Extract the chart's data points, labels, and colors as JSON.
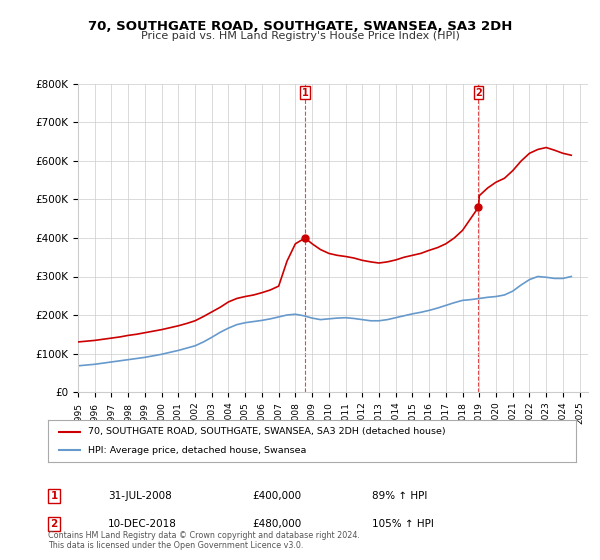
{
  "title": "70, SOUTHGATE ROAD, SOUTHGATE, SWANSEA, SA3 2DH",
  "subtitle": "Price paid vs. HM Land Registry's House Price Index (HPI)",
  "legend_line1": "70, SOUTHGATE ROAD, SOUTHGATE, SWANSEA, SA3 2DH (detached house)",
  "legend_line2": "HPI: Average price, detached house, Swansea",
  "copyright": "Contains HM Land Registry data © Crown copyright and database right 2024.\nThis data is licensed under the Open Government Licence v3.0.",
  "sale1_date": "31-JUL-2008",
  "sale1_price": "£400,000",
  "sale1_hpi": "89% ↑ HPI",
  "sale2_date": "10-DEC-2018",
  "sale2_price": "£480,000",
  "sale2_hpi": "105% ↑ HPI",
  "red_color": "#cc0000",
  "blue_color": "#6699cc",
  "background_color": "#ffffff",
  "ylim": [
    0,
    800000
  ],
  "xlim_start": 1995.0,
  "xlim_end": 2025.5,
  "sale1_x": 2008.58,
  "sale2_x": 2018.95,
  "sale1_y": 400000,
  "sale2_y": 480000,
  "hpi_years": [
    1995,
    1995.5,
    1996,
    1996.5,
    1997,
    1997.5,
    1998,
    1998.5,
    1999,
    1999.5,
    2000,
    2000.5,
    2001,
    2001.5,
    2002,
    2002.5,
    2003,
    2003.5,
    2004,
    2004.5,
    2005,
    2005.5,
    2006,
    2006.5,
    2007,
    2007.5,
    2008,
    2008.5,
    2009,
    2009.5,
    2010,
    2010.5,
    2011,
    2011.5,
    2012,
    2012.5,
    2013,
    2013.5,
    2014,
    2014.5,
    2015,
    2015.5,
    2016,
    2016.5,
    2017,
    2017.5,
    2018,
    2018.5,
    2019,
    2019.5,
    2020,
    2020.5,
    2021,
    2021.5,
    2022,
    2022.5,
    2023,
    2023.5,
    2024,
    2024.5
  ],
  "hpi_values": [
    68000,
    70000,
    72000,
    75000,
    78000,
    81000,
    84000,
    87000,
    90000,
    94000,
    98000,
    103000,
    108000,
    114000,
    120000,
    130000,
    142000,
    155000,
    166000,
    175000,
    180000,
    183000,
    186000,
    190000,
    195000,
    200000,
    202000,
    198000,
    192000,
    188000,
    190000,
    192000,
    193000,
    191000,
    188000,
    185000,
    185000,
    188000,
    193000,
    198000,
    203000,
    207000,
    212000,
    218000,
    225000,
    232000,
    238000,
    240000,
    243000,
    246000,
    248000,
    252000,
    262000,
    278000,
    292000,
    300000,
    298000,
    295000,
    295000,
    300000
  ],
  "red_years": [
    1995,
    1995.5,
    1996,
    1996.5,
    1997,
    1997.5,
    1998,
    1998.5,
    1999,
    1999.5,
    2000,
    2000.5,
    2001,
    2001.5,
    2002,
    2002.5,
    2003,
    2003.5,
    2004,
    2004.5,
    2005,
    2005.5,
    2006,
    2006.5,
    2007,
    2007.5,
    2008,
    2008.58,
    2009,
    2009.5,
    2010,
    2010.5,
    2011,
    2011.5,
    2012,
    2012.5,
    2013,
    2013.5,
    2014,
    2014.5,
    2015,
    2015.5,
    2016,
    2016.5,
    2017,
    2017.5,
    2018,
    2018.95,
    2019,
    2019.5,
    2020,
    2020.5,
    2021,
    2021.5,
    2022,
    2022.5,
    2023,
    2023.5,
    2024,
    2024.5
  ],
  "red_values": [
    130000,
    132000,
    134000,
    137000,
    140000,
    143000,
    147000,
    150000,
    154000,
    158000,
    162000,
    167000,
    172000,
    178000,
    185000,
    196000,
    208000,
    220000,
    234000,
    243000,
    248000,
    252000,
    258000,
    265000,
    275000,
    340000,
    385000,
    400000,
    385000,
    370000,
    360000,
    355000,
    352000,
    348000,
    342000,
    338000,
    335000,
    338000,
    343000,
    350000,
    355000,
    360000,
    368000,
    375000,
    385000,
    400000,
    420000,
    480000,
    510000,
    530000,
    545000,
    555000,
    575000,
    600000,
    620000,
    630000,
    635000,
    628000,
    620000,
    615000
  ]
}
